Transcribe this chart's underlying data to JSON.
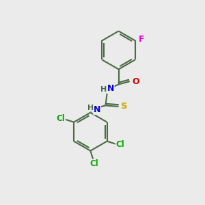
{
  "background_color": "#ebebeb",
  "bond_color": "#4a6b45",
  "bond_width": 1.5,
  "atom_colors": {
    "F": "#e000e0",
    "O": "#cc0000",
    "N": "#0000dd",
    "S": "#ccaa00",
    "Cl": "#00aa00",
    "H": "#4a6b45"
  },
  "font_size": 8.5,
  "fig_size": [
    3.0,
    3.0
  ],
  "dpi": 100,
  "xlim": [
    0,
    10
  ],
  "ylim": [
    0,
    10
  ]
}
